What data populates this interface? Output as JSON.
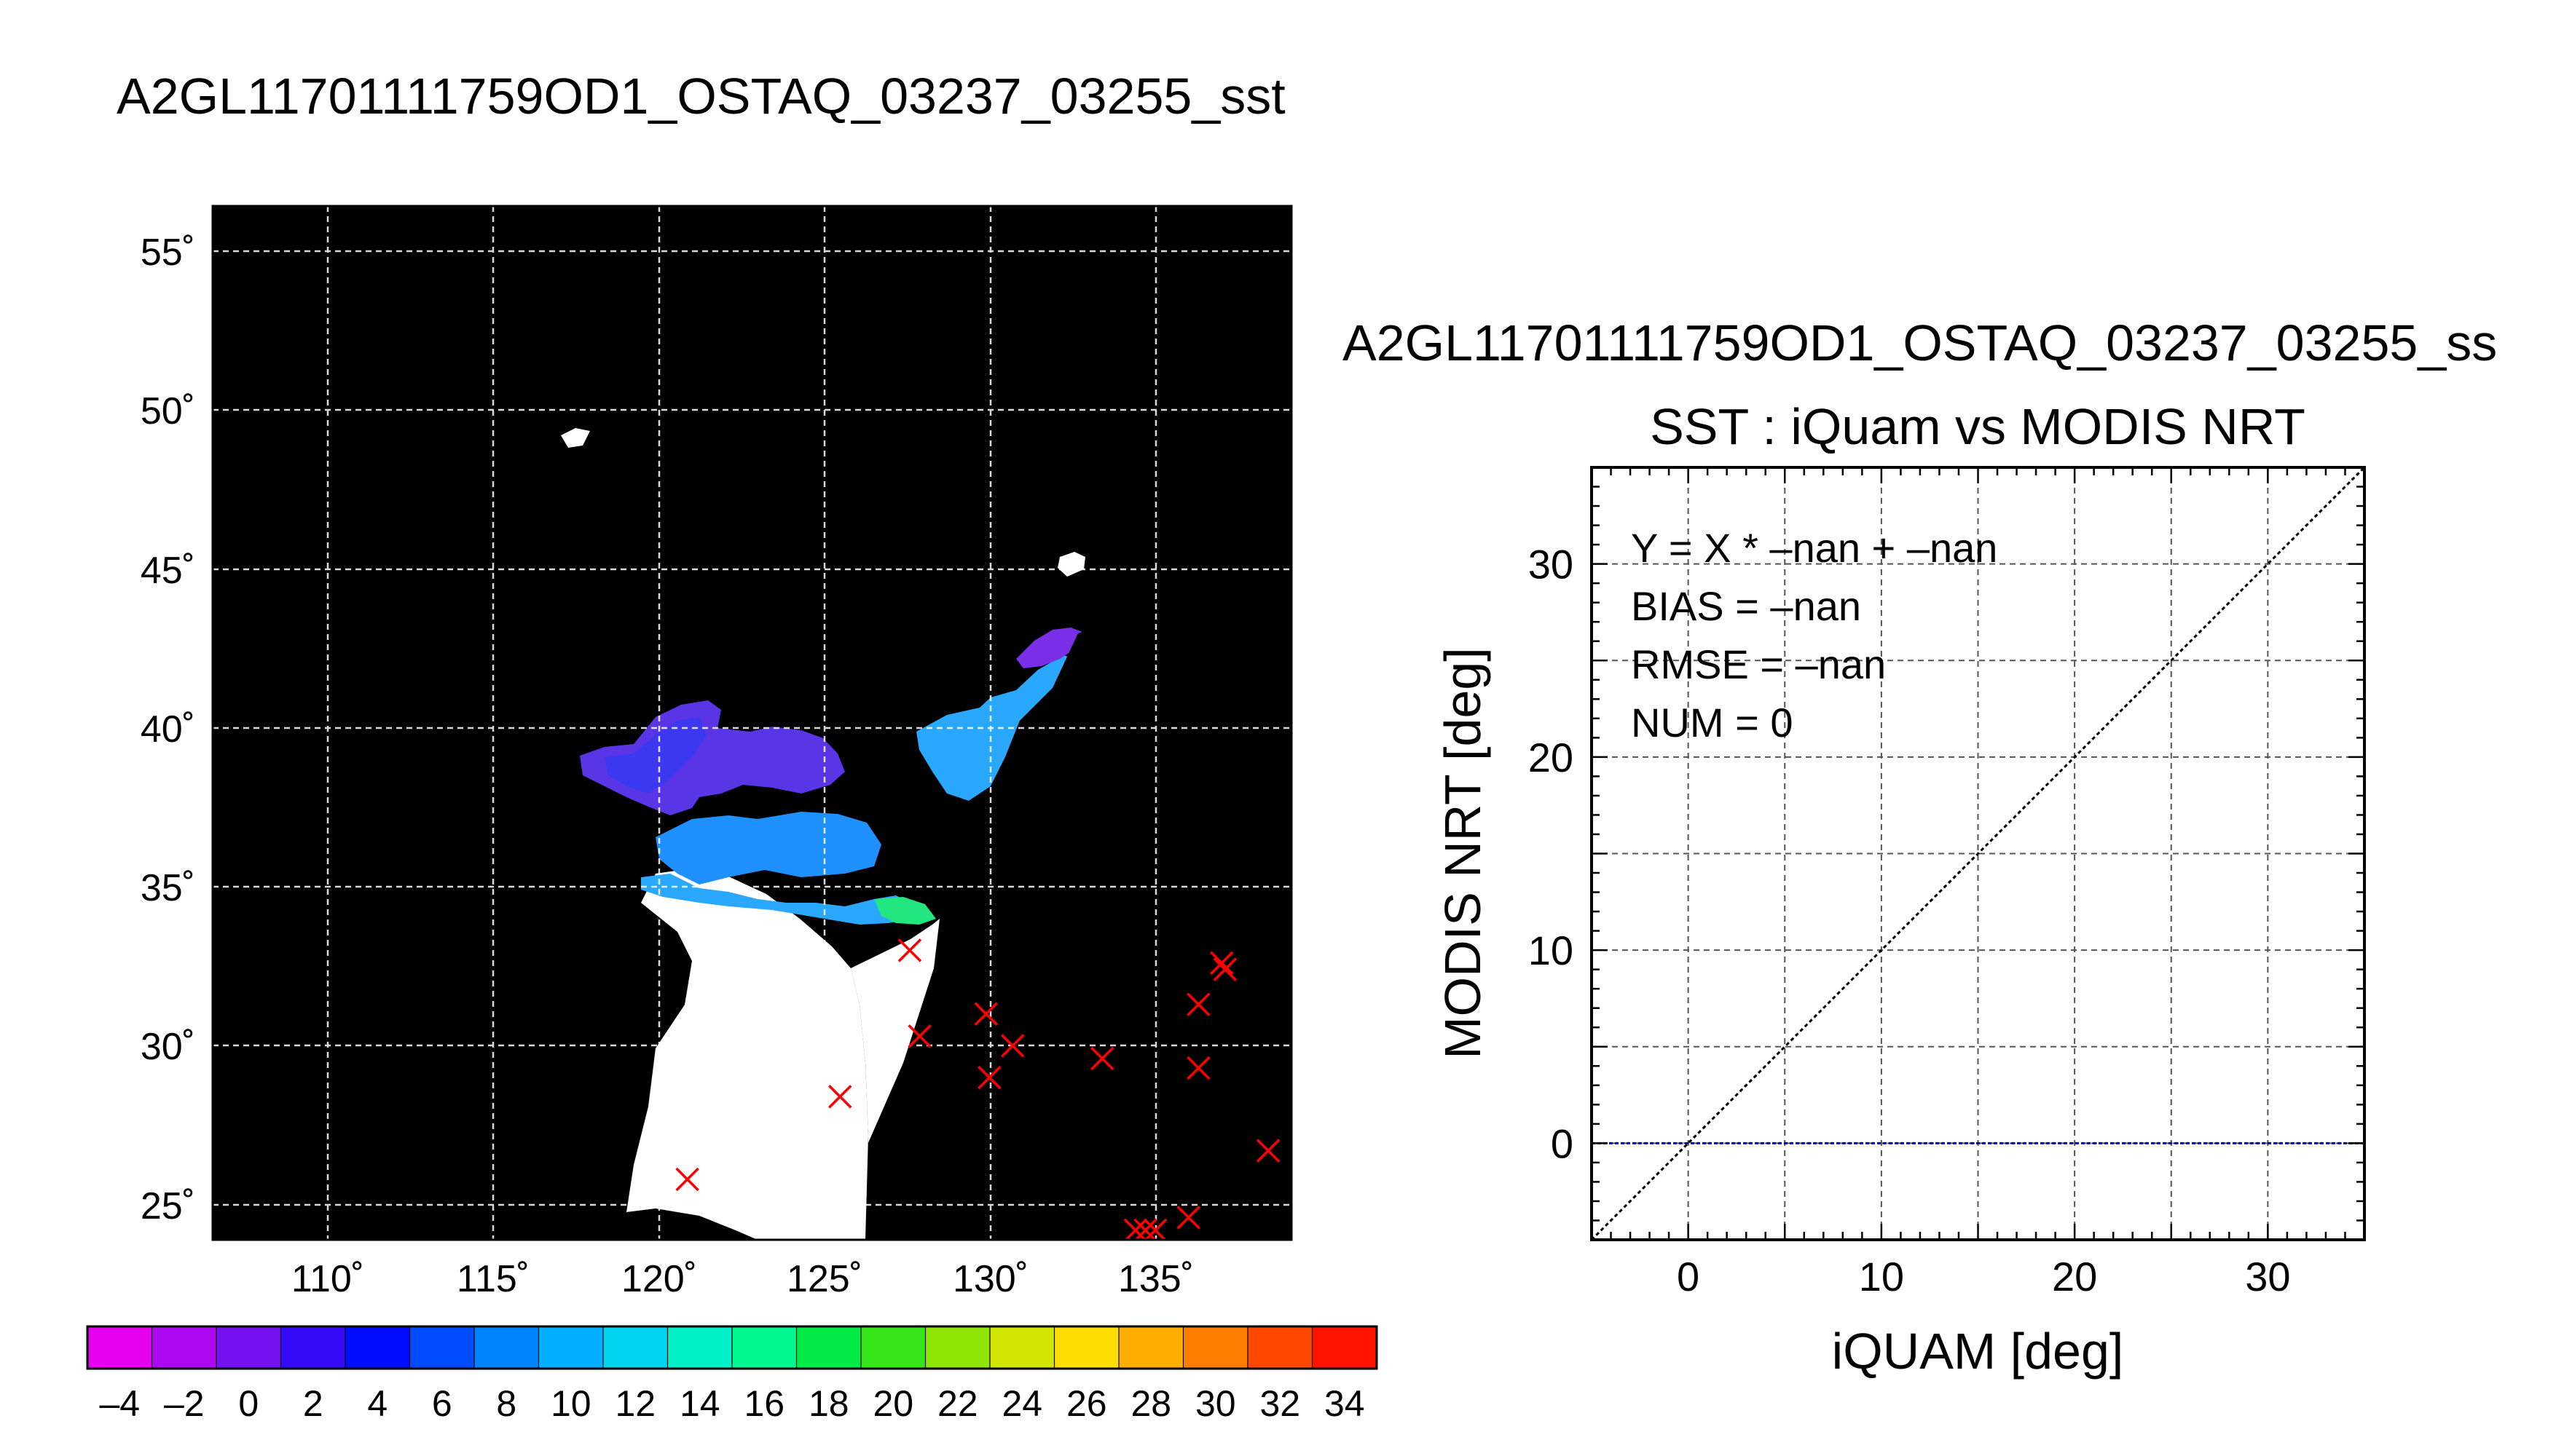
{
  "page_title": "A2GL11701111759OD1_OSTAQ_03237_03255_sst",
  "map": {
    "lat_ticks": [
      "55˚",
      "50˚",
      "45˚",
      "40˚",
      "35˚",
      "30˚",
      "25˚"
    ],
    "lon_ticks": [
      "110˚",
      "115˚",
      "120˚",
      "125˚",
      "130˚",
      "135˚"
    ],
    "lat_range": [
      24,
      56.5
    ],
    "lon_range": [
      106.5,
      139
    ],
    "background_color": "#000000",
    "land_color": "#ffffff",
    "match_marker_color": "#ff0000"
  },
  "colorbar": {
    "ticks": [
      "–4",
      "–2",
      "0",
      "2",
      "4",
      "6",
      "8",
      "10",
      "12",
      "14",
      "16",
      "18",
      "20",
      "22",
      "24",
      "26",
      "28",
      "30",
      "32",
      "34"
    ],
    "range": [
      -5,
      35
    ]
  },
  "chart_data": [
    {
      "type": "scatter",
      "title": "",
      "xlabel": "",
      "ylabel": "",
      "x": [
        120.8,
        125.4,
        127.5,
        127.8,
        129.8,
        129.9,
        130.6,
        133.3,
        134.3,
        134.6,
        134.9,
        135.9,
        136.2,
        136.2,
        136.9,
        137.0,
        138.3
      ],
      "y": [
        25.9,
        28.5,
        33.1,
        30.4,
        31.1,
        29.1,
        30.1,
        29.7,
        24.3,
        24.3,
        24.3,
        24.7,
        31.4,
        29.4,
        32.7,
        32.5,
        26.8
      ],
      "series_name": ""
    },
    {
      "type": "scatter",
      "suptitle": "A2GL11701111759OD1_OSTAQ_03237_03255_ss",
      "title": "SST : iQuam vs MODIS NRT",
      "xlabel": "iQUAM [deg]",
      "ylabel": "MODIS NRT [deg]",
      "xlim": [
        -5,
        35
      ],
      "ylim": [
        -5,
        35
      ],
      "x_ticks": [
        "0",
        "10",
        "20",
        "30"
      ],
      "y_ticks": [
        "0",
        "10",
        "20",
        "30"
      ],
      "stats": [
        "Y = X * –nan + –nan",
        "BIAS = –nan",
        "RMSE = –nan",
        "NUM = 0"
      ],
      "x": [],
      "y": [],
      "reference_lines": [
        {
          "kind": "identity",
          "color": "#000000"
        },
        {
          "kind": "horizontal",
          "y": 0,
          "color": "#0000aa"
        }
      ]
    }
  ]
}
